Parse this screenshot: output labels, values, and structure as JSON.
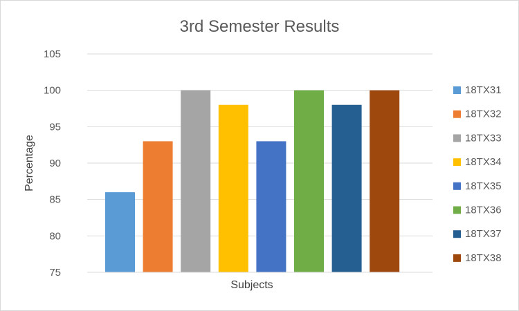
{
  "chart_data": {
    "type": "bar",
    "title": "3rd Semester Results",
    "xlabel": "Subjects",
    "ylabel": "Percentage",
    "ylim": [
      75,
      105
    ],
    "yticks": [
      75,
      80,
      85,
      90,
      95,
      100,
      105
    ],
    "grid": true,
    "legend_position": "right",
    "series": [
      {
        "name": "18TX31",
        "value": 86,
        "color": "#5B9BD5"
      },
      {
        "name": "18TX32",
        "value": 93,
        "color": "#ED7D31"
      },
      {
        "name": "18TX33",
        "value": 100,
        "color": "#A5A5A5"
      },
      {
        "name": "18TX34",
        "value": 98,
        "color": "#FFC000"
      },
      {
        "name": "18TX35",
        "value": 93,
        "color": "#4472C4"
      },
      {
        "name": "18TX36",
        "value": 100,
        "color": "#70AD47"
      },
      {
        "name": "18TX37",
        "value": 98,
        "color": "#255E91"
      },
      {
        "name": "18TX38",
        "value": 100,
        "color": "#9E480E"
      }
    ]
  }
}
